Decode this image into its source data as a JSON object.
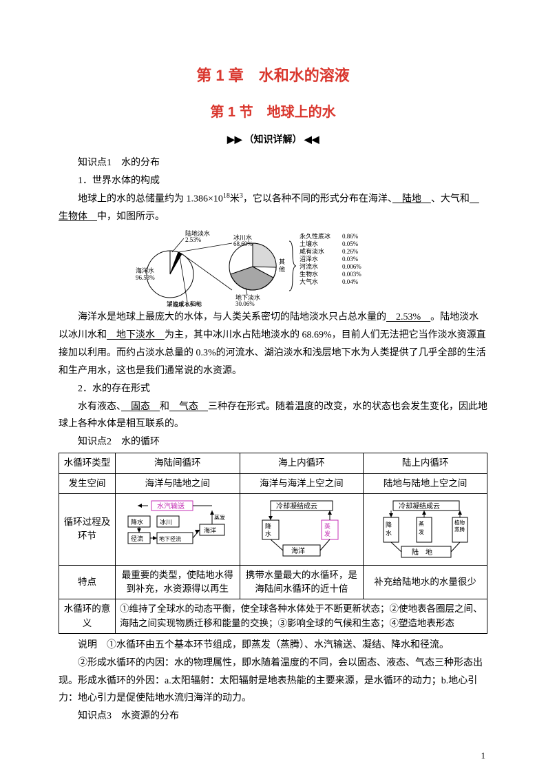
{
  "chapter": "第 1 章　水和水的溶液",
  "section": "第 1 节　地球上的水",
  "ribbonLabel": "（知识详解）",
  "kp1": {
    "heading": "知识点1　水的分布",
    "sub1": "1．世界水体的构成",
    "line1a": "地球上的水的总储量约为 1.386×10",
    "line1exp": "18",
    "line1b": "米",
    "line1exp2": "3",
    "line1c": "，它以各种不同的形式分布在海洋、",
    "u1": "　陆地　",
    "line1d": "、大气和",
    "u2": "　生物体　",
    "line1e": "中，如图所示。",
    "para2a": "海洋水是地球上最庞大的水体，与人类关系密切的陆地淡水只占总水量的",
    "para2u1": "　2.53%　",
    "para2b": "。陆地淡水以冰川水和",
    "para2u2": "　地下淡水　",
    "para2c": "为主，其中冰川水占陆地淡水的 68.69%，目前人们无法把它当作淡水资源直接加以利用。而约占淡水总量的 0.3%的河流水、湖泊淡水和浅层地下水为人类提供了几乎全部的生活和生产用水，这也是我们通常说的水资源。",
    "sub2": "2．水的存在形式",
    "line2a": "水有液态、",
    "u3": "　固态　",
    "line2b": "和",
    "u4": "　气态　",
    "line2c": "三种存在形式。随着温度的改变，水的状态也会发生变化，因此地球上各种水体是相互联系的。"
  },
  "figure": {
    "pieColors": {
      "ocean": "#ffffff",
      "land": "#ffffff",
      "other": "#ffffff",
      "border": "#000000",
      "ice": "#d9d9d9",
      "ground": "#bfbfbf",
      "rest": "#ffffff"
    },
    "labels": {
      "landFresh": "陆地淡水\n2.53%",
      "ocean": "海洋水\n96.53%",
      "lake": "湖泊咸水和地\n下咸水 0.94%",
      "ice": "冰川水\n68.69%",
      "ground": "地下淡水\n30.06%",
      "other": "其他"
    },
    "rightList": [
      [
        "永久性底冰",
        "0.86%"
      ],
      [
        "土壤水",
        "0.05%"
      ],
      [
        "咸有淡水",
        "0.26%"
      ],
      [
        "沼泽水",
        "0.03%"
      ],
      [
        "河流水",
        "0.006%"
      ],
      [
        "生物水",
        "0.003%"
      ],
      [
        "大气水",
        "0.04%"
      ]
    ]
  },
  "kp2heading": "知识点2　水的循环",
  "table": {
    "r1": [
      "水循环类型",
      "海陆间循环",
      "海上内循环",
      "陆上内循环"
    ],
    "r2": [
      "发生空间",
      "海洋与陆地之间",
      "海洋与海洋上空之间",
      "陆地与陆地上空之间"
    ],
    "r3hdr": "循环过程及环节",
    "r4": [
      "特点",
      "最重要的类型，使陆地水得到补充，水资源得以再生",
      "携带水量最大的水循环，是海陆间水循环的近十倍",
      "补充给陆地水的水量很少"
    ],
    "r5hdr": "水循环的意义",
    "r5body": "①维持了全球水的动态平衡，使全球各种水体处于不断更新状态；②使地表各圈层之间、海陆之间实现物质迁移和能量的交换；③影响全球的气候和生态；④塑造地表形态"
  },
  "diagA": {
    "top": "水汽输送",
    "topColor": "#c42fb4",
    "boxes": [
      "降水",
      "冰川",
      "径流",
      "地下径流",
      "海洋"
    ],
    "arrow": "蒸发"
  },
  "diagB": {
    "top": "冷却凝结成云",
    "boxes": [
      "降水",
      "海洋",
      "蒸发"
    ],
    "evapColor": "#c42fb4"
  },
  "diagC": {
    "top": "冷却凝结成云",
    "boxes": [
      "降水",
      "植物蒸腾",
      "蒸发",
      "陆　地"
    ]
  },
  "note1": "说明　①水循环由五个基本环节组成，即蒸发（蒸腾）、水汽输送、凝结、降水和径流。",
  "note2": "②形成水循环的内因：水的物理属性，即水随着温度的不同，会以固态、液态、气态三种形态出现。形成水循环的外因：a.太阳辐射：太阳辐射是地表热能的主要来源，是水循环的动力；b.地心引力：地心引力是促使陆地水流归海洋的动力。",
  "kp3heading": "知识点3　水资源的分布",
  "pageNumber": "1"
}
